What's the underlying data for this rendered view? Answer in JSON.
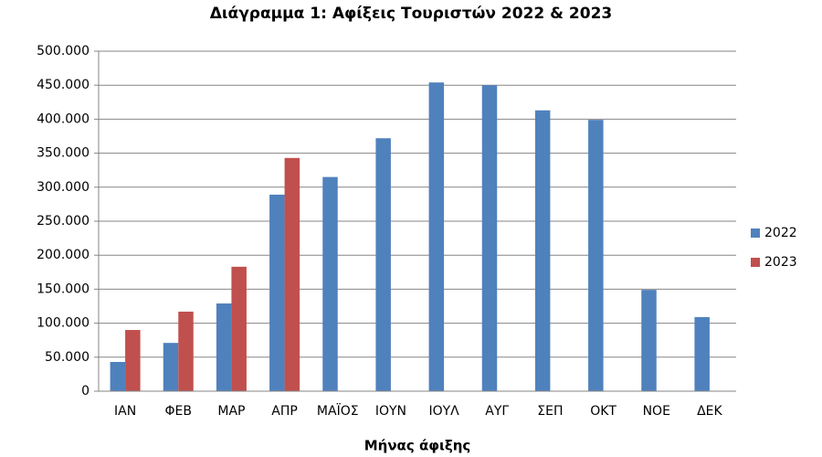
{
  "chart_data": {
    "type": "bar",
    "title": "Διάγραμμα 1: Αφίξεις Τουριστών 2022 & 2023",
    "x_label": "Μήνας άφιξης",
    "categories": [
      "ΙΑΝ",
      "ΦΕΒ",
      "ΜΑΡ",
      "ΑΠΡ",
      "ΜΑΪΟΣ",
      "ΙΟΥΝ",
      "ΙΟΥΛ",
      "ΑΥΓ",
      "ΣΕΠ",
      "ΟΚΤ",
      "ΝΟΕ",
      "ΔΕΚ"
    ],
    "series": [
      {
        "name": "2022",
        "color": "#4f81bd",
        "values": [
          43000,
          71000,
          129000,
          289000,
          315000,
          372000,
          454000,
          450000,
          413000,
          399000,
          149000,
          109000
        ]
      },
      {
        "name": "2023",
        "color": "#c0504d",
        "values": [
          90000,
          117000,
          183000,
          343000,
          null,
          null,
          null,
          null,
          null,
          null,
          null,
          null
        ]
      }
    ],
    "ylim": [
      0,
      500000
    ],
    "yticks": [
      0,
      {
        "value": 50000,
        "label": "50.000"
      },
      {
        "value": 100000,
        "label": "100.000"
      },
      {
        "value": 150000,
        "label": "150.000"
      },
      {
        "value": 200000,
        "label": "200.000"
      },
      {
        "value": 250000,
        "label": "250.000"
      },
      {
        "value": 300000,
        "label": "300.000"
      },
      {
        "value": 350000,
        "label": "350.000"
      },
      {
        "value": 400000,
        "label": "400.000"
      },
      {
        "value": 450000,
        "label": "450.000"
      },
      {
        "value": 500000,
        "label": "500.000"
      }
    ],
    "grid": true,
    "legend": "right"
  }
}
